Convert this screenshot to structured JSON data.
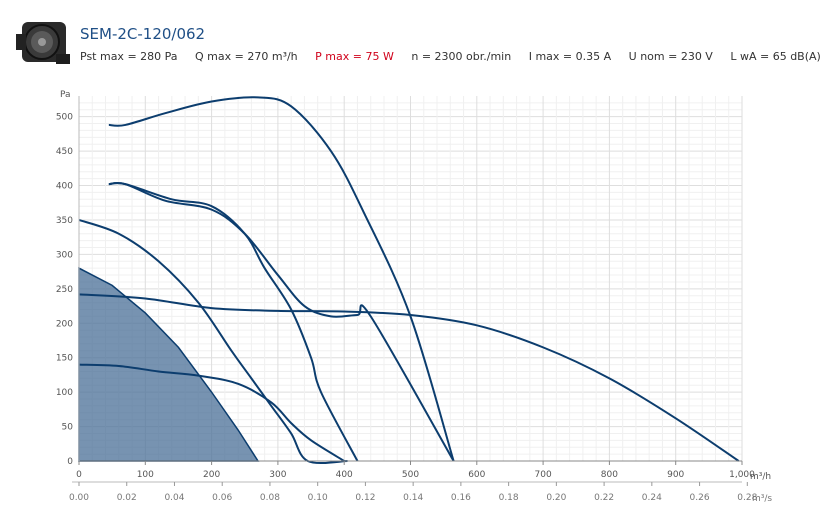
{
  "header": {
    "title": "SEM-2C-120/062",
    "specs": [
      {
        "label": "Pst max = 280 Pa",
        "color": "#333333"
      },
      {
        "label": "Q max = 270 m³/h",
        "color": "#333333"
      },
      {
        "label": "P max = 75 W",
        "color": "#d0021b"
      },
      {
        "label": "n = 2300 obr./min",
        "color": "#333333"
      },
      {
        "label": "I max = 0.35 A",
        "color": "#333333"
      },
      {
        "label": "U nom = 230 V",
        "color": "#333333"
      },
      {
        "label": "L wA = 65 dB(A)",
        "color": "#333333"
      }
    ]
  },
  "chart_data": {
    "type": "line",
    "title": "",
    "ylabel": "Pa",
    "xlabel": "m³/h",
    "xlabel_secondary": "m³/s",
    "xlim": [
      0,
      1000
    ],
    "ylim": [
      0,
      530
    ],
    "yticks": [
      "0",
      "50",
      "100",
      "150",
      "200",
      "250",
      "300",
      "350",
      "400",
      "450",
      "500"
    ],
    "xticks": [
      "0",
      "100",
      "200",
      "300",
      "400",
      "500",
      "600",
      "700",
      "800",
      "900",
      "1,000"
    ],
    "xticks_secondary": [
      "0.00",
      "0.02",
      "0.04",
      "0.06",
      "0.08",
      "0.10",
      "0.12",
      "0.14",
      "0.16",
      "0.18",
      "0.20",
      "0.22",
      "0.24",
      "0.26",
      "0.28"
    ],
    "grid": true,
    "colors": {
      "curve": "#0c3d6e",
      "area": "#4a6f97",
      "grid": "#e2e2e2"
    },
    "highlighted_area": {
      "x": [
        0,
        50,
        100,
        150,
        200,
        240,
        270
      ],
      "y": [
        280,
        255,
        215,
        165,
        100,
        45,
        0
      ]
    },
    "series": [
      {
        "x": [
          45,
          70,
          130,
          200,
          270,
          320,
          380,
          430,
          500,
          565
        ],
        "y": [
          488,
          488,
          505,
          522,
          528,
          515,
          450,
          360,
          210,
          0
        ]
      },
      {
        "x": [
          45,
          70,
          130,
          200,
          250,
          300,
          340,
          380,
          420,
          440,
          565
        ],
        "y": [
          402,
          402,
          378,
          365,
          330,
          270,
          225,
          210,
          212,
          210,
          0
        ]
      },
      {
        "x": [
          45,
          70,
          140,
          200,
          250,
          280,
          320,
          350,
          365,
          420
        ],
        "y": [
          402,
          402,
          380,
          370,
          330,
          280,
          220,
          150,
          100,
          0
        ]
      },
      {
        "x": [
          0,
          60,
          120,
          180,
          230,
          260,
          290,
          320,
          345,
          405
        ],
        "y": [
          350,
          330,
          290,
          230,
          160,
          120,
          80,
          40,
          0,
          0
        ]
      },
      {
        "x": [
          0,
          100,
          200,
          300,
          400,
          500,
          600,
          700,
          800,
          900,
          995
        ],
        "y": [
          242,
          236,
          222,
          218,
          217,
          212,
          197,
          165,
          120,
          62,
          0
        ]
      },
      {
        "x": [
          0,
          60,
          120,
          180,
          240,
          290,
          320,
          350,
          400
        ],
        "y": [
          140,
          138,
          130,
          124,
          112,
          85,
          55,
          30,
          0
        ]
      }
    ]
  }
}
